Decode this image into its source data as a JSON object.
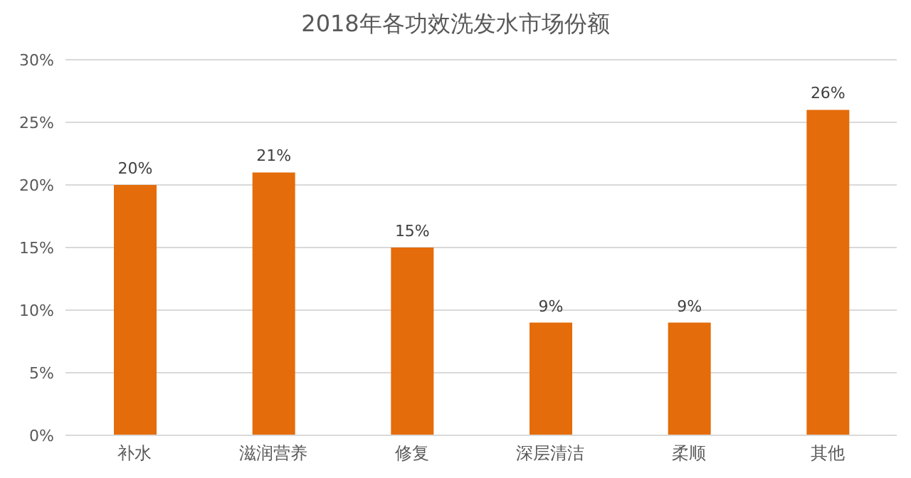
{
  "chart_data": {
    "type": "bar",
    "title": "2018年各功效洗发水市场份额",
    "categories": [
      "补水",
      "滋润营养",
      "修复",
      "深层清洁",
      "柔顺",
      "其他"
    ],
    "values": [
      20,
      21,
      15,
      9,
      9,
      26
    ],
    "value_labels": [
      "20%",
      "21%",
      "15%",
      "9%",
      "9%",
      "26%"
    ],
    "color": "#e46c0a",
    "ylim": [
      0,
      30
    ],
    "yticks": [
      {
        "value": 0,
        "label": "0%"
      },
      {
        "value": 5,
        "label": "5%"
      },
      {
        "value": 10,
        "label": "10%"
      },
      {
        "value": 15,
        "label": "15%"
      },
      {
        "value": 20,
        "label": "20%"
      },
      {
        "value": 25,
        "label": "25%"
      },
      {
        "value": 30,
        "label": "30%"
      }
    ],
    "grid": "y",
    "legend": false
  }
}
